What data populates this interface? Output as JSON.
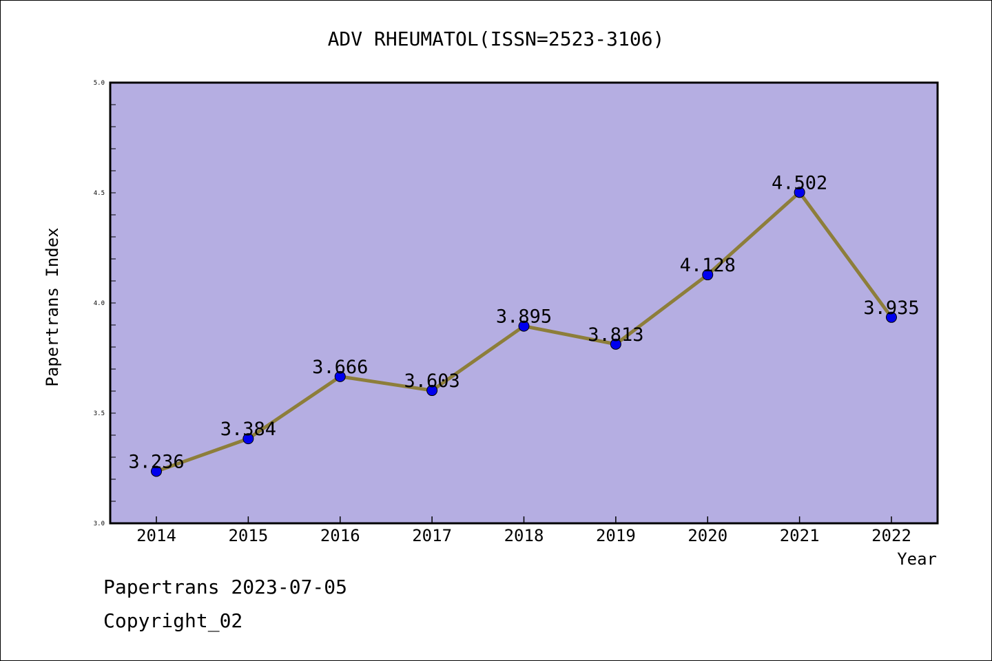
{
  "chart_data": {
    "type": "line",
    "title": "ADV RHEUMATOL(ISSN=2523-3106)",
    "xlabel": "Year",
    "ylabel": "Papertrans Index",
    "categories": [
      "2014",
      "2015",
      "2016",
      "2017",
      "2018",
      "2019",
      "2020",
      "2021",
      "2022"
    ],
    "series": [
      {
        "values": [
          3.236,
          3.384,
          3.666,
          3.603,
          3.895,
          3.813,
          4.128,
          4.502,
          3.935
        ],
        "data_labels": [
          "3.236",
          "3.384",
          "3.666",
          "3.603",
          "3.895",
          "3.813",
          "4.128",
          "4.502",
          "3.935"
        ]
      }
    ],
    "ylim": [
      3.0,
      5.0
    ],
    "yticks": [
      "3.0",
      "3.5",
      "4.0",
      "4.5",
      "5.0"
    ],
    "grid": false,
    "legend": "none",
    "colors": {
      "plot_background": "#b5aee2",
      "line": "#8d7e3a",
      "marker": "#0000ee"
    }
  },
  "footer": {
    "date_text": "Papertrans 2023-07-05",
    "copyright_text": "Copyright_02"
  }
}
